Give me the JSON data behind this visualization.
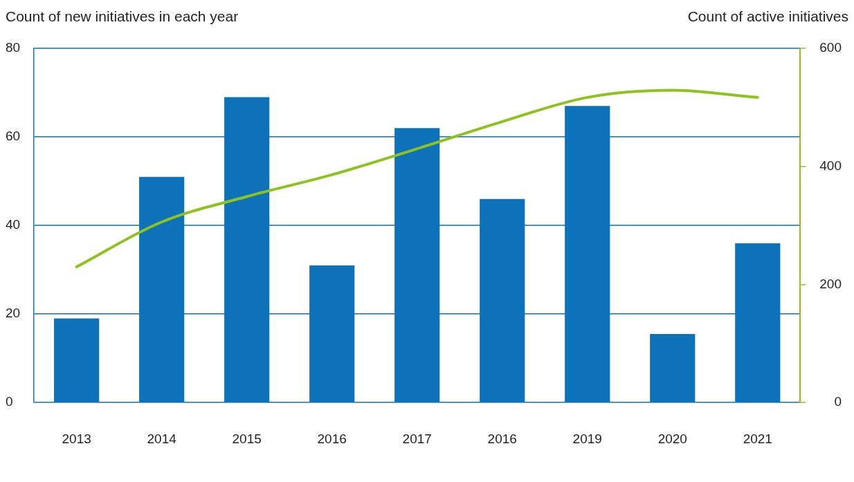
{
  "chart_data": {
    "type": "bar",
    "ylabel": "Count of new initiatives in each year",
    "y2label": "Count of active initiatives",
    "categories": [
      "2013",
      "2014",
      "2015",
      "2016",
      "2017",
      "2016",
      "2019",
      "2020",
      "2021"
    ],
    "series": [
      {
        "color": "#0d72b9",
        "values": [
          19,
          51,
          69,
          31,
          62,
          46,
          67,
          15.5,
          36
        ]
      },
      {
        "type": "line",
        "axis": "y2",
        "color": "#8dc21f",
        "values": [
          230,
          306,
          349,
          386,
          430,
          476,
          517,
          529,
          517
        ]
      }
    ],
    "ylim": [
      0,
      80
    ],
    "yticks": [
      0,
      20,
      40,
      60,
      80
    ],
    "y2lim": [
      0,
      600
    ],
    "y2ticks": [
      0,
      200,
      400,
      600
    ],
    "grid": "y",
    "legend": false,
    "marker": "none",
    "line_style": "solid"
  }
}
